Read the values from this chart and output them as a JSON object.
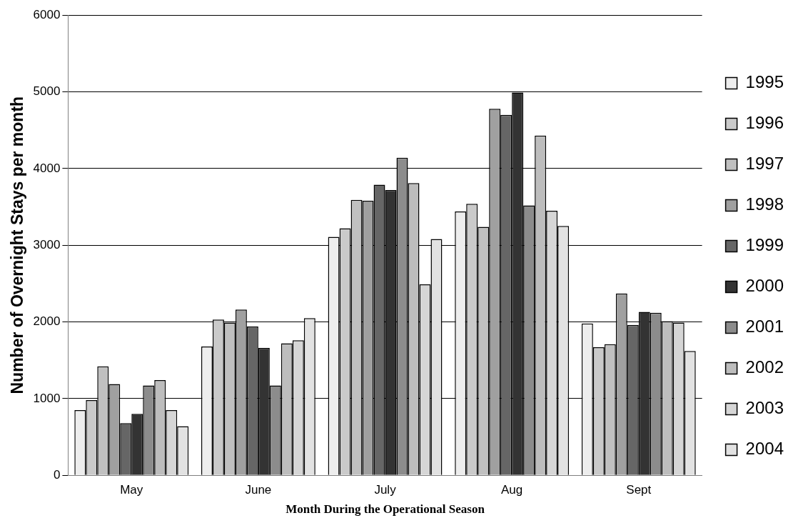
{
  "chart_data": {
    "type": "bar",
    "xlabel": "Month During the Operational Season",
    "ylabel": "Number of Overnight Stays per month",
    "categories": [
      "May",
      "June",
      "July",
      "Aug",
      "Sept"
    ],
    "series": [
      {
        "name": "1995",
        "color": "#ededed",
        "values": [
          850,
          1680,
          3110,
          3440,
          1980
        ]
      },
      {
        "name": "1996",
        "color": "#cacaca",
        "values": [
          980,
          2030,
          3220,
          3540,
          1670
        ]
      },
      {
        "name": "1997",
        "color": "#c0c0c0",
        "values": [
          1420,
          1990,
          3590,
          3240,
          1710
        ]
      },
      {
        "name": "1998",
        "color": "#a0a0a0",
        "values": [
          1190,
          2160,
          3580,
          4780,
          2370
        ]
      },
      {
        "name": "1999",
        "color": "#666666",
        "values": [
          680,
          1940,
          3790,
          4700,
          1960
        ]
      },
      {
        "name": "2000",
        "color": "#333333",
        "values": [
          800,
          1660,
          3720,
          4990,
          2130
        ]
      },
      {
        "name": "2001",
        "color": "#8c8c8c",
        "values": [
          1170,
          1170,
          4140,
          3520,
          2120
        ]
      },
      {
        "name": "2002",
        "color": "#bdbdbd",
        "values": [
          1240,
          1720,
          3810,
          4430,
          2010
        ]
      },
      {
        "name": "2003",
        "color": "#d6d6d6",
        "values": [
          850,
          1760,
          2490,
          3450,
          1990
        ]
      },
      {
        "name": "2004",
        "color": "#e2e2e2",
        "values": [
          640,
          2050,
          3080,
          3250,
          1620
        ]
      }
    ],
    "ylim": [
      0,
      6000
    ],
    "yticks": [
      0,
      1000,
      2000,
      3000,
      4000,
      5000,
      6000
    ],
    "grid": "y",
    "legend": "right"
  }
}
